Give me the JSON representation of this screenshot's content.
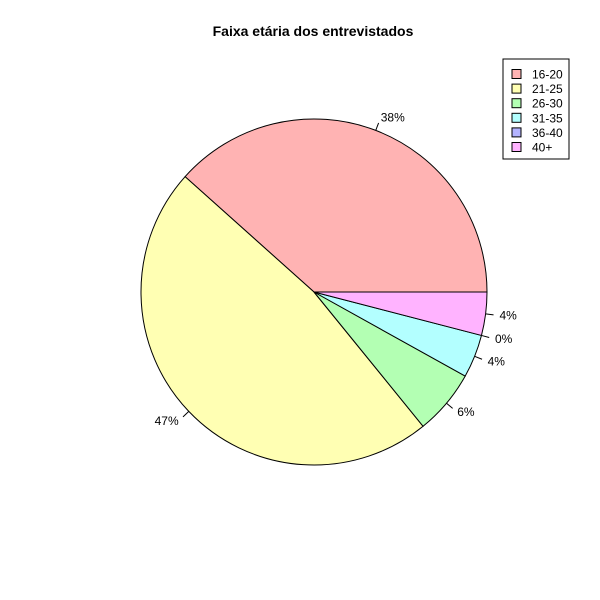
{
  "chart_data": {
    "type": "pie",
    "title": "Faixa etária dos entrevistados",
    "categories": [
      "16-20",
      "21-25",
      "26-30",
      "31-35",
      "36-40",
      "40+"
    ],
    "values": [
      38,
      47,
      6,
      4,
      0,
      4
    ],
    "labels": [
      "38%",
      "47%",
      "6%",
      "4%",
      "0%",
      "4%"
    ],
    "colors": [
      "#FFB3B3",
      "#FFFFB3",
      "#B3FFB3",
      "#B3FFFF",
      "#B3B3FF",
      "#FFB3FF"
    ],
    "direction": "counterclockwise",
    "start_angle_deg": 0,
    "legend": {
      "position": "top-right",
      "entries": [
        "16-20",
        "21-25",
        "26-30",
        "31-35",
        "36-40",
        "40+"
      ]
    }
  }
}
